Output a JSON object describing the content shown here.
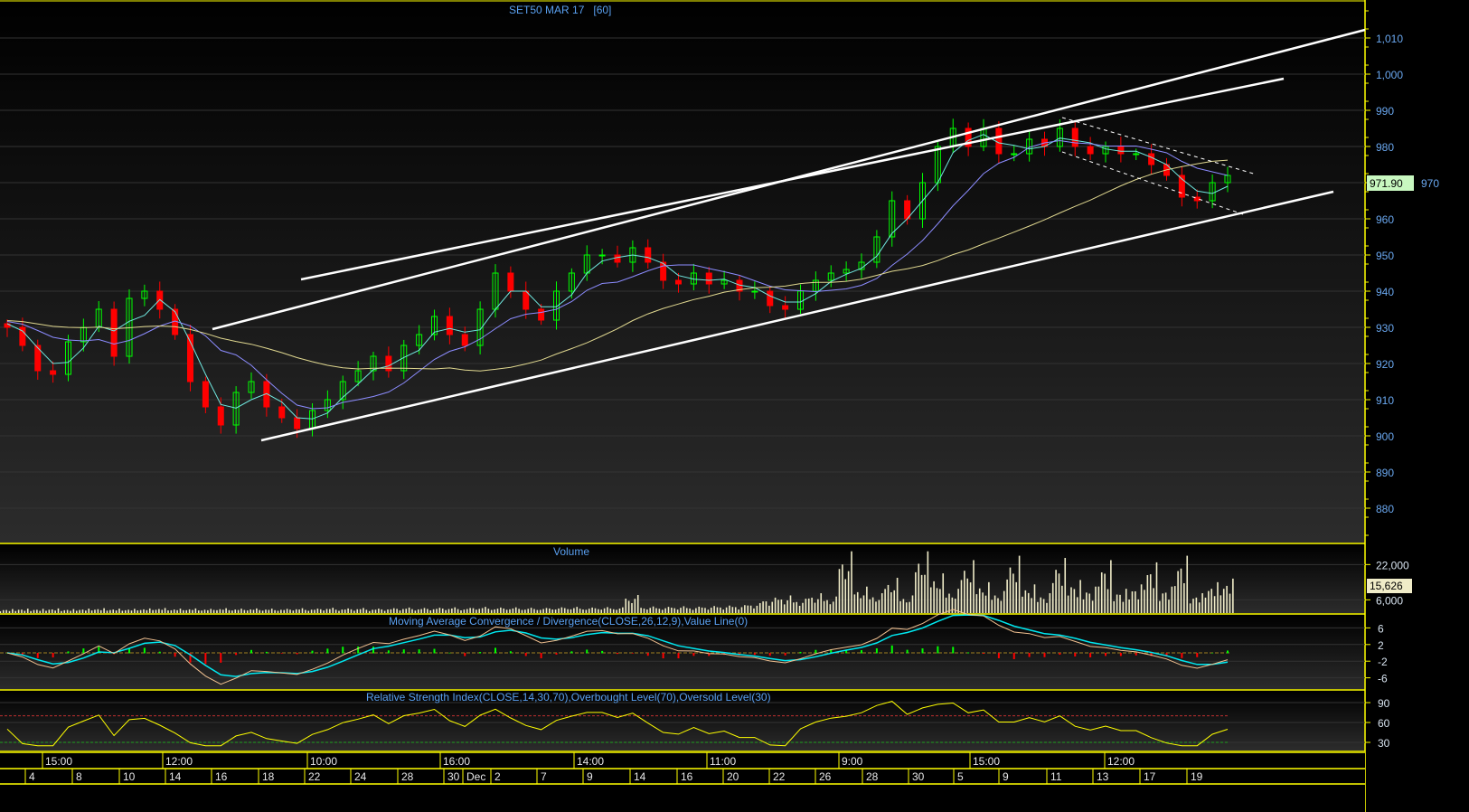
{
  "chart_data": {
    "type": "candlestick",
    "title": "SET50 MAR 17   [60]",
    "price_axis": {
      "ticks": [
        1010,
        1000,
        990,
        980,
        970,
        960,
        950,
        940,
        930,
        920,
        910,
        900,
        890,
        880
      ],
      "ylim": [
        872,
        1015
      ]
    },
    "last_price": "971.90",
    "closes": [
      930,
      925,
      918,
      917,
      926,
      930,
      935,
      922,
      938,
      940,
      935,
      928,
      915,
      908,
      903,
      912,
      915,
      908,
      905,
      902,
      907,
      910,
      915,
      918,
      922,
      918,
      925,
      928,
      933,
      928,
      925,
      935,
      945,
      940,
      935,
      932,
      940,
      945,
      950,
      950,
      948,
      952,
      948,
      943,
      942,
      945,
      942,
      943,
      940,
      940,
      936,
      935,
      940,
      943,
      945,
      946,
      948,
      955,
      965,
      960,
      970,
      980,
      985,
      980,
      985,
      978,
      978,
      982,
      980,
      985,
      980,
      978,
      980,
      978,
      978,
      975,
      972,
      966,
      965,
      970,
      972
    ],
    "volume": {
      "label": "Volume",
      "ticks": [
        "22,000",
        "6,000"
      ],
      "tick_values": [
        22000,
        6000
      ],
      "last_value": "15,626",
      "values": [
        1800,
        2000,
        1900,
        2100,
        1800,
        2000,
        2200,
        2000,
        1900,
        2100,
        2300,
        2000,
        2100,
        1900,
        2200,
        2000,
        2100,
        2000,
        1900,
        2200,
        2000,
        2400,
        2100,
        2300,
        2000,
        2200,
        2500,
        2300,
        2400,
        2600,
        2300,
        2800,
        2500,
        2600,
        2400,
        2300,
        2600,
        2800,
        2500,
        2700,
        2600,
        8200,
        3000,
        2800,
        3100,
        2900,
        3200,
        3400,
        3600,
        4500,
        7000,
        8000,
        6500,
        9000,
        7500,
        28000,
        12000,
        9000,
        16000,
        8000,
        28000,
        18000,
        11000,
        24000,
        14000,
        10000,
        26000,
        13000,
        9000,
        25000,
        15000,
        12000,
        24000,
        11000,
        13000,
        23000,
        12000,
        26000,
        9000,
        14000,
        15626
      ]
    },
    "macd": {
      "label": "Moving Average Convergence / Divergence(CLOSE,26,12,9),Value Line(0)",
      "ticks": [
        6,
        2,
        -2,
        -6
      ],
      "ylim": [
        -9,
        9
      ]
    },
    "rsi": {
      "label": "Relative Strength Index(CLOSE,14,30,70),Overbought Level(70),Oversold Level(30)",
      "ticks": [
        90,
        60,
        30
      ],
      "overbought": 70,
      "oversold": 30
    },
    "time_axis": {
      "intraday": [
        "15:00",
        "12:00",
        "10:00",
        "16:00",
        "14:00",
        "11:00",
        "9:00",
        "15:00",
        "12:00"
      ],
      "dates": [
        "4",
        "8",
        "10",
        "14",
        "16",
        "18",
        "22",
        "24",
        "28",
        "30",
        "Dec",
        "2",
        "7",
        "9",
        "14",
        "16",
        "20",
        "22",
        "26",
        "28",
        "30",
        "5",
        "9",
        "11",
        "13",
        "17",
        "19"
      ]
    },
    "colors": {
      "up": "#00ff00",
      "down": "#ff0000",
      "ma_fast": "#70e8e0",
      "ma_mid": "#8c8cff",
      "ma_slow": "#e0d890",
      "panel_border": "#ffff00",
      "axis_text": "#6aa8f0",
      "last_price_bg": "#c8f8c0",
      "last_volume_bg": "#f0ecc8",
      "macd_line": "#00e8f0",
      "signal_line": "#f0c090",
      "rsi_line": "#ffff00"
    }
  }
}
